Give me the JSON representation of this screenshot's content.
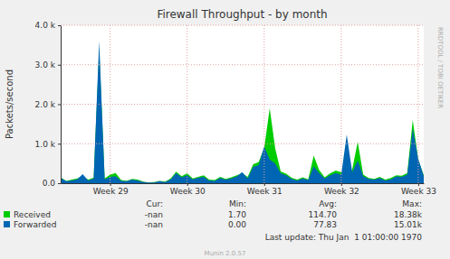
{
  "chart_data": {
    "type": "area",
    "title": "Firewall Throughput - by month",
    "y_label": "Packets/second",
    "categories": [
      null,
      null,
      null,
      null,
      null,
      null,
      null,
      null,
      null,
      "Week 29",
      null,
      null,
      null,
      null,
      null,
      null,
      null,
      null,
      null,
      null,
      null,
      null,
      null,
      "Week 30",
      null,
      null,
      null,
      null,
      null,
      null,
      null,
      null,
      null,
      null,
      null,
      null,
      null,
      "Week 31",
      null,
      null,
      null,
      null,
      null,
      null,
      null,
      null,
      null,
      null,
      null,
      null,
      null,
      "Week 32",
      null,
      null,
      null,
      null,
      null,
      null,
      null,
      null,
      null,
      null,
      null,
      null,
      null,
      "Week 33",
      null
    ],
    "series": [
      {
        "name": "Received",
        "color": "#00cc00",
        "values": [
          150,
          60,
          90,
          120,
          180,
          90,
          140,
          3400,
          120,
          220,
          260,
          80,
          60,
          110,
          90,
          40,
          20,
          30,
          60,
          40,
          120,
          290,
          180,
          250,
          120,
          160,
          200,
          90,
          80,
          160,
          110,
          150,
          200,
          250,
          160,
          480,
          540,
          900,
          1900,
          880,
          300,
          240,
          140,
          90,
          150,
          100,
          700,
          330,
          150,
          250,
          320,
          280,
          230,
          350,
          1050,
          220,
          130,
          110,
          160,
          90,
          130,
          200,
          190,
          260,
          1600,
          600,
          200
        ],
        "stats": [
          "-nan",
          "1.70",
          "114.70",
          "18.38k"
        ]
      },
      {
        "name": "Forwarded",
        "color": "#0066b3",
        "values": [
          140,
          50,
          70,
          100,
          230,
          70,
          120,
          3600,
          100,
          160,
          180,
          60,
          50,
          90,
          70,
          30,
          15,
          20,
          50,
          30,
          100,
          260,
          150,
          200,
          100,
          140,
          160,
          70,
          60,
          130,
          90,
          120,
          170,
          280,
          120,
          420,
          460,
          930,
          600,
          500,
          250,
          200,
          110,
          70,
          120,
          80,
          430,
          250,
          120,
          200,
          260,
          220,
          1230,
          280,
          580,
          180,
          110,
          90,
          130,
          70,
          100,
          170,
          160,
          220,
          1380,
          620,
          180
        ],
        "stats": [
          "-nan",
          "0.00",
          "77.83",
          "15.01k"
        ]
      }
    ],
    "stat_labels": [
      "Cur:",
      "Min:",
      "Avg:",
      "Max:"
    ],
    "ylim": [
      0,
      4000
    ],
    "yticks": [
      {
        "value": 0,
        "label": "0.0"
      },
      {
        "value": 1000,
        "label": "1.0 k"
      },
      {
        "value": 2000,
        "label": "2.0 k"
      },
      {
        "value": 3000,
        "label": "3.0 k"
      },
      {
        "value": 4000,
        "label": "4.0 k"
      }
    ],
    "grid": true,
    "legend": "bottom",
    "footer": "Last update: Thu Jan  1 01:00:00 1970",
    "credit": "Munin 2.0.57",
    "side_text": "RRDTOOL / TOBI OETIKER"
  }
}
